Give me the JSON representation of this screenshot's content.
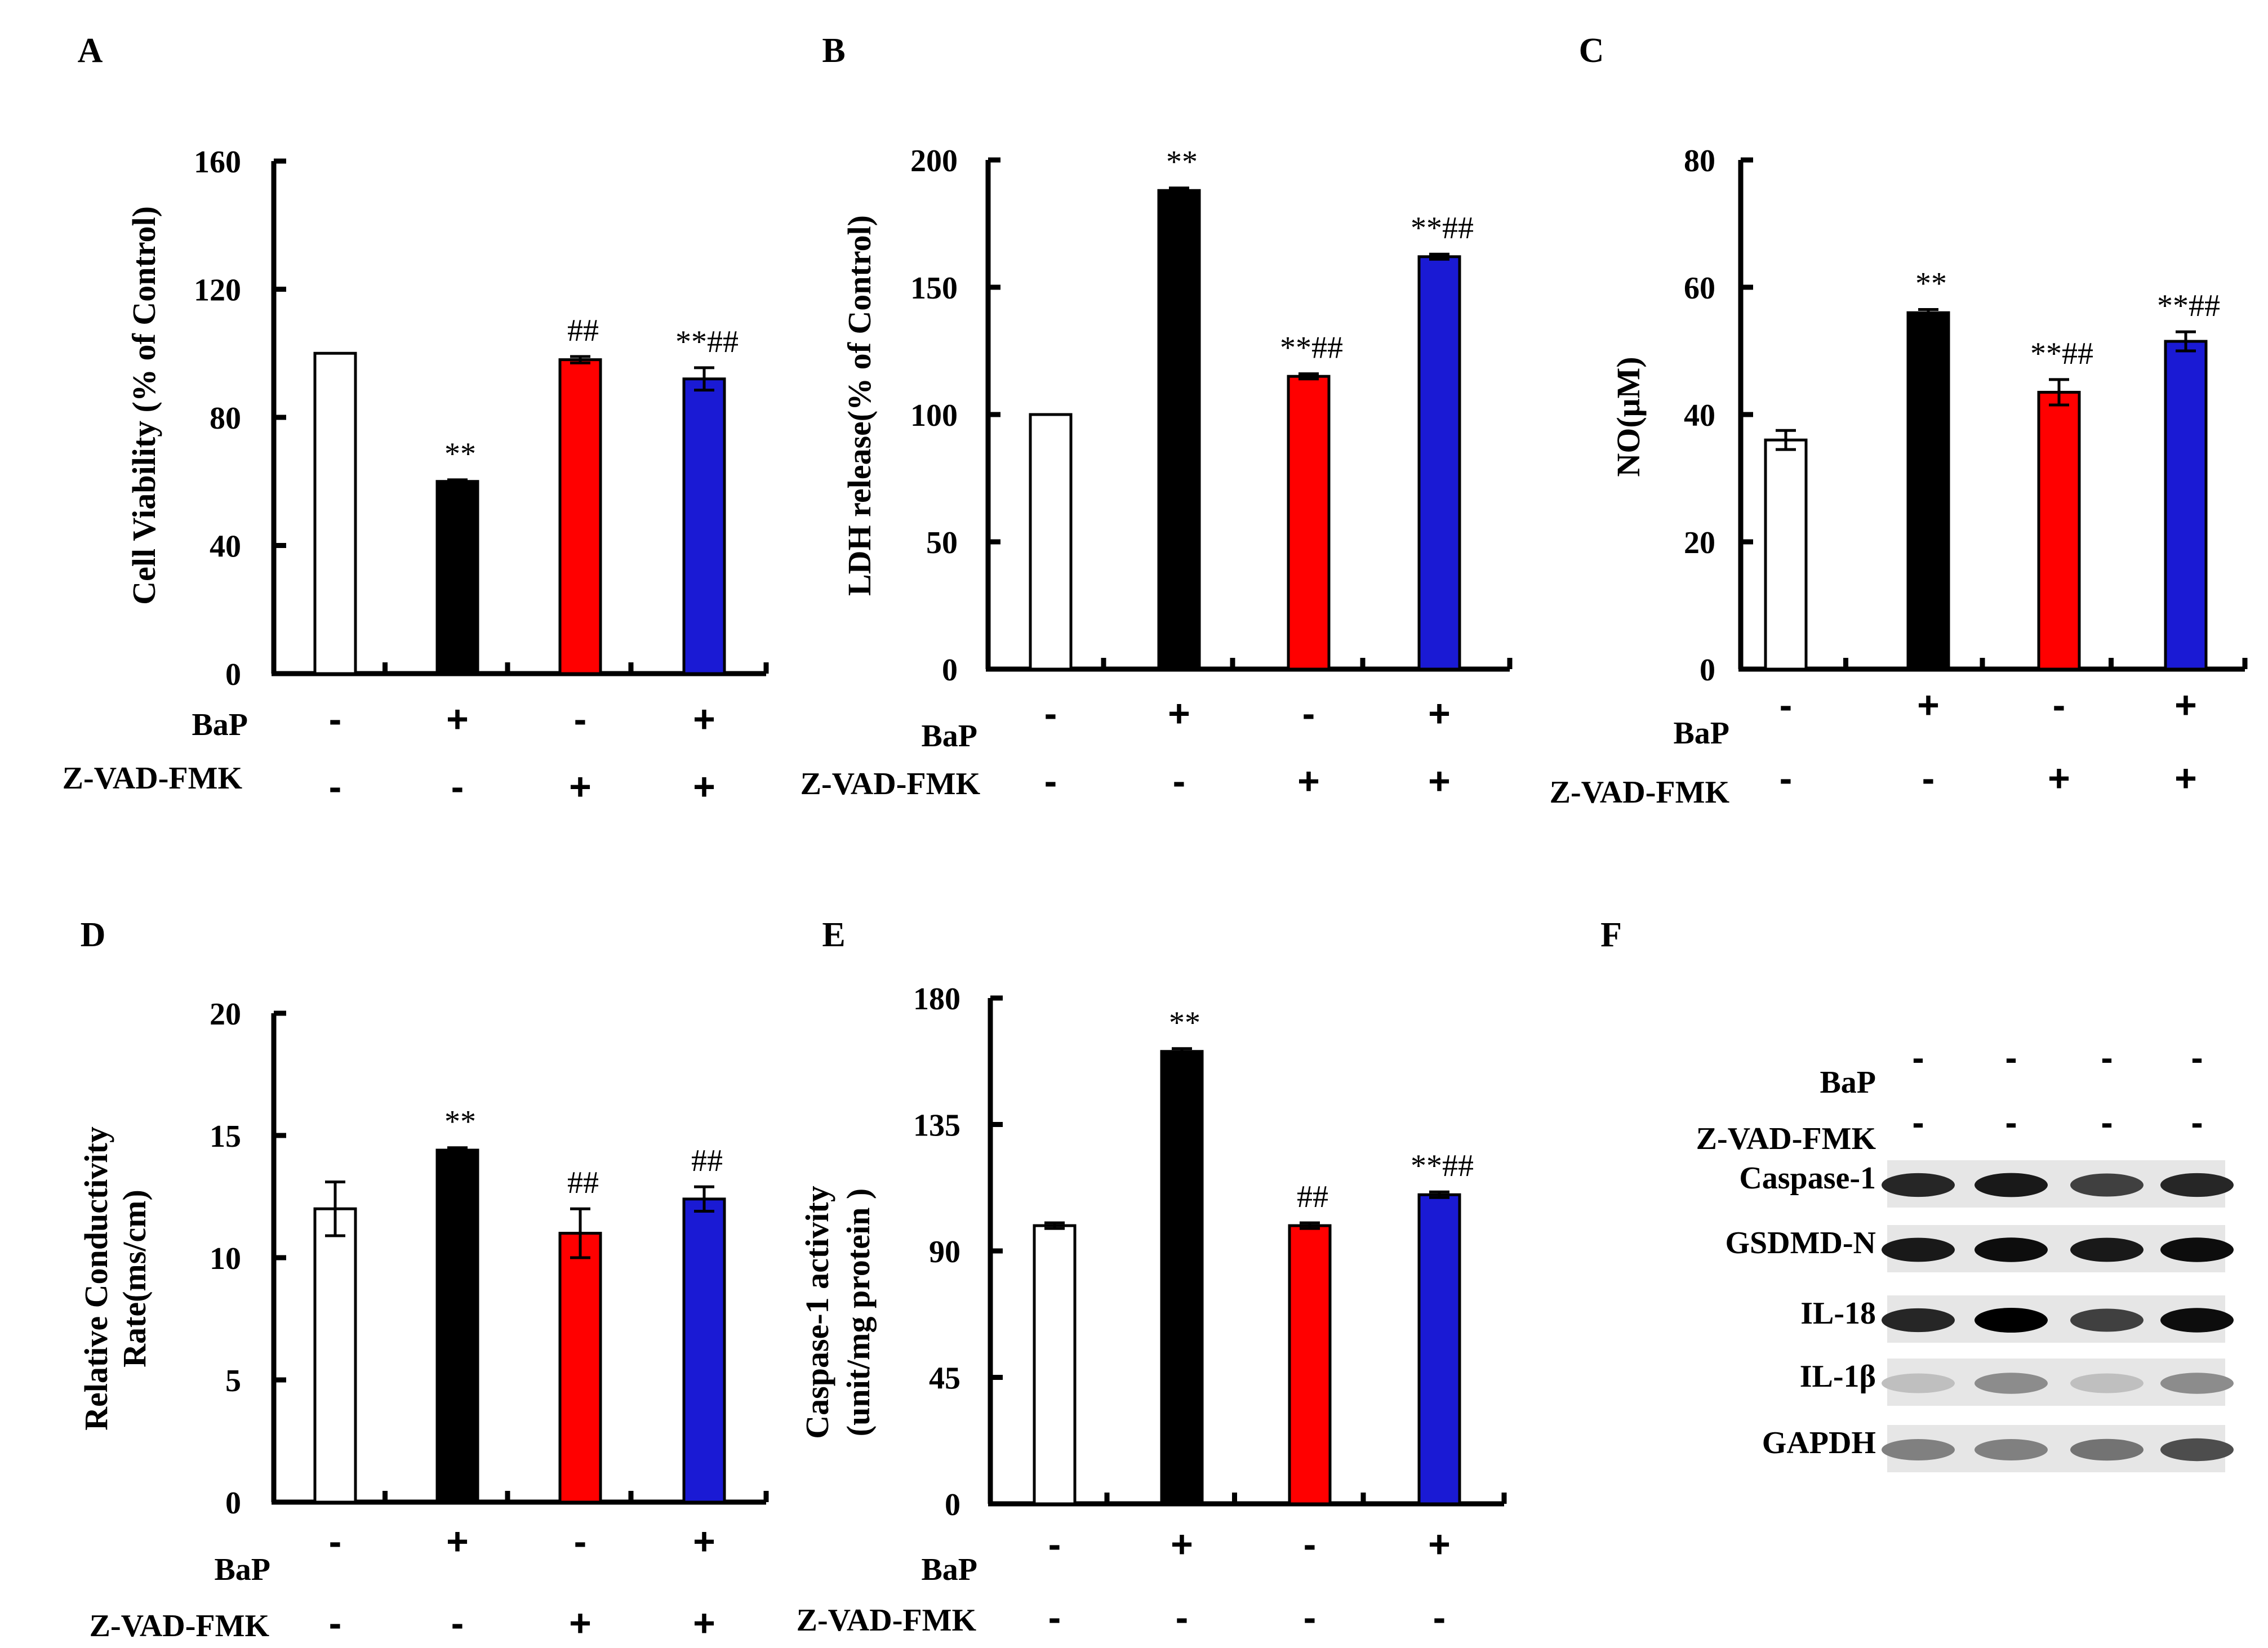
{
  "figure": {
    "panels": [
      {
        "id": "A",
        "letter": "A",
        "ylabel_lines": [
          "Cell Viability (% of Control)"
        ],
        "ymax": 160,
        "yticks": [
          0,
          40,
          80,
          120,
          160
        ],
        "values": [
          100,
          60,
          98,
          92
        ],
        "errors": [
          0,
          0.5,
          1,
          3.5
        ],
        "marks": [
          "",
          "**",
          "##",
          "**##"
        ],
        "row1": [
          "-",
          "+",
          "-",
          "+"
        ],
        "row2": [
          "-",
          "-",
          "+",
          "+"
        ]
      },
      {
        "id": "B",
        "letter": "B",
        "ylabel_lines": [
          "LDH release(% of Control)"
        ],
        "ymax": 200,
        "yticks": [
          0,
          50,
          100,
          150,
          200
        ],
        "values": [
          100,
          188,
          115,
          162
        ],
        "errors": [
          0,
          1,
          1,
          1
        ],
        "marks": [
          "",
          "**",
          "**##",
          "**##"
        ],
        "row1": [
          "-",
          "+",
          "-",
          "+"
        ],
        "row2": [
          "-",
          "-",
          "+",
          "+"
        ]
      },
      {
        "id": "C",
        "letter": "C",
        "ylabel_lines": [
          "NO(μM)"
        ],
        "ymax": 80,
        "yticks": [
          0,
          20,
          40,
          60,
          80
        ],
        "values": [
          36,
          56,
          43.5,
          51.5
        ],
        "errors": [
          1.5,
          0.5,
          2,
          1.5
        ],
        "marks": [
          "",
          "**",
          "**##",
          "**##"
        ],
        "row1": [
          "-",
          "+",
          "-",
          "+"
        ],
        "row2": [
          "-",
          "-",
          "+",
          "+"
        ]
      },
      {
        "id": "D",
        "letter": "D",
        "ylabel_lines": [
          "Relative Conductivity",
          "Rate(ms/cm)"
        ],
        "ymax": 20,
        "yticks": [
          0,
          5,
          10,
          15,
          20
        ],
        "values": [
          12,
          14.4,
          11,
          12.4
        ],
        "errors": [
          1.1,
          0.1,
          1,
          0.5
        ],
        "marks": [
          "",
          "**",
          "##",
          "##"
        ],
        "row1": [
          "-",
          "+",
          "-",
          "+"
        ],
        "row2": [
          "-",
          "-",
          "+",
          "+"
        ]
      },
      {
        "id": "E",
        "letter": "E",
        "ylabel_lines": [
          "Caspase-1 activity",
          "(unit/mg protein )"
        ],
        "ymax": 180,
        "yticks": [
          0,
          45,
          90,
          135,
          180
        ],
        "values": [
          99,
          161,
          99,
          110
        ],
        "errors": [
          1,
          1,
          1,
          1
        ],
        "marks": [
          "",
          "**",
          "##",
          "**##"
        ],
        "row1": [
          "-",
          "+",
          "-",
          "+"
        ],
        "row2": [
          "-",
          "-",
          "-",
          "-"
        ]
      }
    ],
    "colors": {
      "control": "#ffffff",
      "bap": "#000000",
      "zvad": "#ff0000",
      "combo": "#1a1ad4"
    },
    "treat_label_1": "BaP",
    "treat_label_2": "Z-VAD-FMK",
    "blot": {
      "letter": "F",
      "bap_signs": [
        "-",
        "-",
        "-",
        "-"
      ],
      "zvad_signs": [
        "-",
        "-",
        "-",
        "-"
      ],
      "bands": [
        {
          "label": "Caspase-1",
          "intensity": [
            0.85,
            0.9,
            0.75,
            0.85
          ]
        },
        {
          "label": "GSDMD-N",
          "intensity": [
            0.9,
            0.95,
            0.9,
            0.95
          ]
        },
        {
          "label": "IL-18",
          "intensity": [
            0.85,
            1.0,
            0.75,
            0.95
          ]
        },
        {
          "label": "IL-1β",
          "intensity": [
            0.25,
            0.45,
            0.25,
            0.45
          ]
        },
        {
          "label": "GAPDH",
          "intensity": [
            0.5,
            0.5,
            0.55,
            0.7
          ]
        }
      ]
    }
  },
  "chart_data": [
    {
      "type": "bar",
      "title": "A",
      "categories": [
        "1",
        "2",
        "3",
        "4"
      ],
      "values": [
        100,
        60,
        98,
        92
      ],
      "ylabel": "Cell Viability (% of Control)",
      "ylim": [
        0,
        160
      ]
    },
    {
      "type": "bar",
      "title": "B",
      "categories": [
        "1",
        "2",
        "3",
        "4"
      ],
      "values": [
        100,
        188,
        115,
        162
      ],
      "ylabel": "LDH release(% of Control)",
      "ylim": [
        0,
        200
      ]
    },
    {
      "type": "bar",
      "title": "C",
      "categories": [
        "1",
        "2",
        "3",
        "4"
      ],
      "values": [
        36,
        56,
        43.5,
        51.5
      ],
      "ylabel": "NO(μM)",
      "ylim": [
        0,
        80
      ]
    },
    {
      "type": "bar",
      "title": "D",
      "categories": [
        "1",
        "2",
        "3",
        "4"
      ],
      "values": [
        12,
        14.4,
        11,
        12.4
      ],
      "ylabel": "Relative Conductivity Rate(ms/cm)",
      "ylim": [
        0,
        20
      ]
    },
    {
      "type": "bar",
      "title": "E",
      "categories": [
        "1",
        "2",
        "3",
        "4"
      ],
      "values": [
        99,
        161,
        99,
        110
      ],
      "ylabel": "Caspase-1 activity (unit/mg protein )",
      "ylim": [
        0,
        180
      ]
    }
  ]
}
